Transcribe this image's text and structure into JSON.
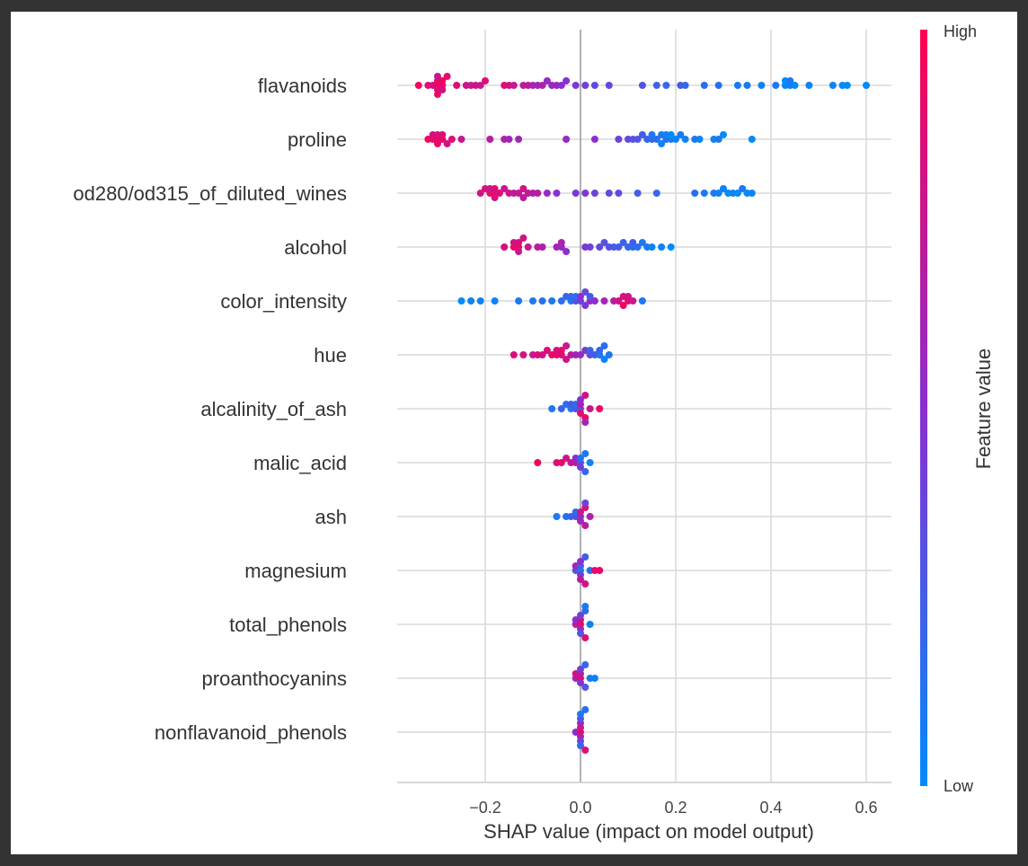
{
  "chart_data": {
    "type": "scatter",
    "subtype": "shap-beeswarm-summary",
    "title": "",
    "xlabel": "SHAP value (impact on model output)",
    "ylabel": "",
    "xlim": [
      -0.38,
      0.65
    ],
    "xticks": [
      -0.2,
      0.0,
      0.2,
      0.4,
      0.6
    ],
    "xtick_labels": [
      "−0.2",
      "0.0",
      "0.2",
      "0.4",
      "0.6"
    ],
    "grid": true,
    "colorbar": {
      "label": "Feature value",
      "high_label": "High",
      "low_label": "Low",
      "high_color": "#ff0052",
      "mid_color": "#8a2fd0",
      "low_color": "#008bfb"
    },
    "features": [
      {
        "name": "flavanoids",
        "points": [
          [
            -0.34,
            0.95
          ],
          [
            -0.32,
            0.85
          ],
          [
            -0.31,
            0.8
          ],
          [
            -0.3,
            0.95
          ],
          [
            -0.3,
            0.9
          ],
          [
            -0.3,
            0.85
          ],
          [
            -0.3,
            0.75
          ],
          [
            -0.3,
            0.9
          ],
          [
            -0.29,
            0.9
          ],
          [
            -0.29,
            0.95
          ],
          [
            -0.29,
            0.8
          ],
          [
            -0.28,
            0.9
          ],
          [
            -0.26,
            0.85
          ],
          [
            -0.24,
            0.8
          ],
          [
            -0.23,
            0.75
          ],
          [
            -0.22,
            0.8
          ],
          [
            -0.21,
            0.75
          ],
          [
            -0.2,
            0.85
          ],
          [
            -0.16,
            0.85
          ],
          [
            -0.15,
            0.8
          ],
          [
            -0.14,
            0.75
          ],
          [
            -0.12,
            0.7
          ],
          [
            -0.11,
            0.75
          ],
          [
            -0.1,
            0.6
          ],
          [
            -0.09,
            0.6
          ],
          [
            -0.08,
            0.65
          ],
          [
            -0.07,
            0.55
          ],
          [
            -0.06,
            0.55
          ],
          [
            -0.05,
            0.6
          ],
          [
            -0.04,
            0.5
          ],
          [
            -0.03,
            0.5
          ],
          [
            -0.01,
            0.45
          ],
          [
            0.01,
            0.4
          ],
          [
            0.03,
            0.35
          ],
          [
            0.06,
            0.35
          ],
          [
            0.13,
            0.3
          ],
          [
            0.16,
            0.25
          ],
          [
            0.18,
            0.2
          ],
          [
            0.21,
            0.25
          ],
          [
            0.22,
            0.2
          ],
          [
            0.26,
            0.15
          ],
          [
            0.29,
            0.15
          ],
          [
            0.33,
            0.1
          ],
          [
            0.35,
            0.1
          ],
          [
            0.38,
            0.05
          ],
          [
            0.41,
            0.1
          ],
          [
            0.43,
            0.05
          ],
          [
            0.43,
            0.0
          ],
          [
            0.44,
            0.05
          ],
          [
            0.44,
            0.1
          ],
          [
            0.45,
            0.0
          ],
          [
            0.48,
            0.05
          ],
          [
            0.53,
            0.05
          ],
          [
            0.55,
            0.0
          ],
          [
            0.56,
            0.0
          ],
          [
            0.6,
            0.0
          ]
        ]
      },
      {
        "name": "proline",
        "points": [
          [
            -0.32,
            0.95
          ],
          [
            -0.31,
            0.9
          ],
          [
            -0.31,
            0.8
          ],
          [
            -0.3,
            0.95
          ],
          [
            -0.3,
            0.85
          ],
          [
            -0.3,
            0.9
          ],
          [
            -0.29,
            0.9
          ],
          [
            -0.29,
            0.85
          ],
          [
            -0.28,
            0.8
          ],
          [
            -0.27,
            0.85
          ],
          [
            -0.25,
            0.75
          ],
          [
            -0.19,
            0.7
          ],
          [
            -0.16,
            0.65
          ],
          [
            -0.15,
            0.6
          ],
          [
            -0.13,
            0.6
          ],
          [
            -0.03,
            0.55
          ],
          [
            0.03,
            0.5
          ],
          [
            0.08,
            0.4
          ],
          [
            0.1,
            0.35
          ],
          [
            0.11,
            0.3
          ],
          [
            0.12,
            0.3
          ],
          [
            0.13,
            0.25
          ],
          [
            0.14,
            0.2
          ],
          [
            0.15,
            0.2
          ],
          [
            0.15,
            0.1
          ],
          [
            0.16,
            0.15
          ],
          [
            0.17,
            0.1
          ],
          [
            0.17,
            0.05
          ],
          [
            0.18,
            0.15
          ],
          [
            0.18,
            0.05
          ],
          [
            0.19,
            0.1
          ],
          [
            0.19,
            0.0
          ],
          [
            0.2,
            0.05
          ],
          [
            0.21,
            0.1
          ],
          [
            0.22,
            0.05
          ],
          [
            0.24,
            0.1
          ],
          [
            0.25,
            0.05
          ],
          [
            0.28,
            0.05
          ],
          [
            0.29,
            0.1
          ],
          [
            0.3,
            0.0
          ],
          [
            0.36,
            0.0
          ]
        ]
      },
      {
        "name": "od280/od315_of_diluted_wines",
        "points": [
          [
            -0.21,
            0.8
          ],
          [
            -0.2,
            0.85
          ],
          [
            -0.19,
            0.9
          ],
          [
            -0.19,
            0.75
          ],
          [
            -0.18,
            0.95
          ],
          [
            -0.18,
            0.85
          ],
          [
            -0.18,
            0.8
          ],
          [
            -0.17,
            0.85
          ],
          [
            -0.16,
            0.75
          ],
          [
            -0.15,
            0.8
          ],
          [
            -0.14,
            0.7
          ],
          [
            -0.13,
            0.75
          ],
          [
            -0.12,
            0.8
          ],
          [
            -0.12,
            0.7
          ],
          [
            -0.11,
            0.75
          ],
          [
            -0.1,
            0.65
          ],
          [
            -0.09,
            0.7
          ],
          [
            -0.07,
            0.55
          ],
          [
            -0.05,
            0.5
          ],
          [
            -0.01,
            0.45
          ],
          [
            0.01,
            0.45
          ],
          [
            0.03,
            0.4
          ],
          [
            0.06,
            0.35
          ],
          [
            0.08,
            0.35
          ],
          [
            0.12,
            0.25
          ],
          [
            0.16,
            0.2
          ],
          [
            0.24,
            0.15
          ],
          [
            0.26,
            0.1
          ],
          [
            0.28,
            0.1
          ],
          [
            0.29,
            0.05
          ],
          [
            0.3,
            0.05
          ],
          [
            0.31,
            0.0
          ],
          [
            0.32,
            0.05
          ],
          [
            0.33,
            0.0
          ],
          [
            0.34,
            0.1
          ],
          [
            0.35,
            0.0
          ],
          [
            0.36,
            0.05
          ]
        ]
      },
      {
        "name": "alcohol",
        "points": [
          [
            -0.16,
            0.85
          ],
          [
            -0.14,
            0.9
          ],
          [
            -0.14,
            0.8
          ],
          [
            -0.13,
            0.95
          ],
          [
            -0.13,
            0.85
          ],
          [
            -0.13,
            0.75
          ],
          [
            -0.12,
            0.8
          ],
          [
            -0.11,
            0.75
          ],
          [
            -0.09,
            0.7
          ],
          [
            -0.08,
            0.65
          ],
          [
            -0.05,
            0.6
          ],
          [
            -0.04,
            0.55
          ],
          [
            -0.04,
            0.65
          ],
          [
            -0.03,
            0.5
          ],
          [
            0.01,
            0.45
          ],
          [
            0.02,
            0.4
          ],
          [
            0.04,
            0.35
          ],
          [
            0.05,
            0.3
          ],
          [
            0.06,
            0.3
          ],
          [
            0.07,
            0.25
          ],
          [
            0.08,
            0.25
          ],
          [
            0.09,
            0.2
          ],
          [
            0.1,
            0.2
          ],
          [
            0.11,
            0.15
          ],
          [
            0.11,
            0.25
          ],
          [
            0.12,
            0.15
          ],
          [
            0.13,
            0.1
          ],
          [
            0.14,
            0.1
          ],
          [
            0.15,
            0.05
          ],
          [
            0.17,
            0.05
          ],
          [
            0.19,
            0.0
          ]
        ]
      },
      {
        "name": "color_intensity",
        "points": [
          [
            -0.25,
            0.0
          ],
          [
            -0.23,
            0.05
          ],
          [
            -0.21,
            0.05
          ],
          [
            -0.18,
            0.05
          ],
          [
            -0.13,
            0.1
          ],
          [
            -0.1,
            0.1
          ],
          [
            -0.08,
            0.15
          ],
          [
            -0.06,
            0.1
          ],
          [
            -0.04,
            0.15
          ],
          [
            -0.03,
            0.2
          ],
          [
            -0.02,
            0.1
          ],
          [
            -0.02,
            0.2
          ],
          [
            -0.01,
            0.3
          ],
          [
            -0.01,
            0.15
          ],
          [
            0.0,
            0.4
          ],
          [
            0.0,
            0.5
          ],
          [
            0.01,
            0.45
          ],
          [
            0.01,
            0.35
          ],
          [
            0.02,
            0.55
          ],
          [
            0.02,
            0.25
          ],
          [
            0.03,
            0.5
          ],
          [
            0.05,
            0.6
          ],
          [
            0.07,
            0.7
          ],
          [
            0.08,
            0.8
          ],
          [
            0.09,
            0.85
          ],
          [
            0.09,
            0.95
          ],
          [
            0.1,
            0.9
          ],
          [
            0.1,
            0.8
          ],
          [
            0.11,
            0.75
          ],
          [
            0.13,
            0.1
          ]
        ]
      },
      {
        "name": "hue",
        "points": [
          [
            -0.14,
            0.85
          ],
          [
            -0.12,
            0.8
          ],
          [
            -0.1,
            0.75
          ],
          [
            -0.09,
            0.85
          ],
          [
            -0.08,
            0.8
          ],
          [
            -0.07,
            0.85
          ],
          [
            -0.06,
            0.9
          ],
          [
            -0.05,
            0.95
          ],
          [
            -0.05,
            0.8
          ],
          [
            -0.04,
            0.85
          ],
          [
            -0.04,
            0.9
          ],
          [
            -0.03,
            0.8
          ],
          [
            -0.03,
            0.75
          ],
          [
            -0.02,
            0.7
          ],
          [
            -0.01,
            0.6
          ],
          [
            0.0,
            0.55
          ],
          [
            0.01,
            0.45
          ],
          [
            0.02,
            0.35
          ],
          [
            0.02,
            0.2
          ],
          [
            0.03,
            0.25
          ],
          [
            0.04,
            0.1
          ],
          [
            0.04,
            0.2
          ],
          [
            0.05,
            0.05
          ],
          [
            0.05,
            0.15
          ],
          [
            0.06,
            0.1
          ]
        ]
      },
      {
        "name": "alcalinity_of_ash",
        "points": [
          [
            -0.06,
            0.1
          ],
          [
            -0.04,
            0.2
          ],
          [
            -0.03,
            0.15
          ],
          [
            -0.02,
            0.1
          ],
          [
            -0.02,
            0.25
          ],
          [
            -0.01,
            0.3
          ],
          [
            -0.01,
            0.15
          ],
          [
            0.0,
            0.35
          ],
          [
            0.0,
            0.7
          ],
          [
            0.0,
            0.85
          ],
          [
            0.0,
            0.5
          ],
          [
            0.01,
            0.9
          ],
          [
            0.01,
            0.8
          ],
          [
            0.01,
            0.6
          ],
          [
            0.02,
            0.75
          ],
          [
            0.04,
            0.95
          ]
        ]
      },
      {
        "name": "malic_acid",
        "points": [
          [
            -0.09,
            0.95
          ],
          [
            -0.05,
            0.85
          ],
          [
            -0.04,
            0.9
          ],
          [
            -0.03,
            0.8
          ],
          [
            -0.02,
            0.75
          ],
          [
            -0.01,
            0.7
          ],
          [
            -0.01,
            0.5
          ],
          [
            0.0,
            0.3
          ],
          [
            0.0,
            0.15
          ],
          [
            0.0,
            0.4
          ],
          [
            0.01,
            0.1
          ],
          [
            0.01,
            0.2
          ],
          [
            0.02,
            0.05
          ]
        ]
      },
      {
        "name": "ash",
        "points": [
          [
            -0.05,
            0.1
          ],
          [
            -0.03,
            0.15
          ],
          [
            -0.02,
            0.2
          ],
          [
            -0.01,
            0.3
          ],
          [
            -0.01,
            0.15
          ],
          [
            0.0,
            0.5
          ],
          [
            0.0,
            0.75
          ],
          [
            0.0,
            0.6
          ],
          [
            0.01,
            0.85
          ],
          [
            0.01,
            0.7
          ],
          [
            0.01,
            0.4
          ],
          [
            0.02,
            0.65
          ]
        ]
      },
      {
        "name": "magnesium",
        "points": [
          [
            -0.01,
            0.3
          ],
          [
            -0.01,
            0.6
          ],
          [
            0.0,
            0.1
          ],
          [
            0.0,
            0.2
          ],
          [
            0.0,
            0.4
          ],
          [
            0.0,
            0.5
          ],
          [
            0.0,
            0.7
          ],
          [
            0.01,
            0.25
          ],
          [
            0.01,
            0.8
          ],
          [
            0.02,
            0.15
          ],
          [
            0.03,
            0.85
          ],
          [
            0.04,
            0.95
          ]
        ]
      },
      {
        "name": "total_phenols",
        "points": [
          [
            -0.01,
            0.7
          ],
          [
            -0.01,
            0.5
          ],
          [
            0.0,
            0.9
          ],
          [
            0.0,
            0.8
          ],
          [
            0.0,
            0.6
          ],
          [
            0.0,
            0.4
          ],
          [
            0.0,
            0.3
          ],
          [
            0.01,
            0.2
          ],
          [
            0.01,
            0.85
          ],
          [
            0.01,
            0.1
          ],
          [
            0.02,
            0.05
          ]
        ]
      },
      {
        "name": "proanthocyanins",
        "points": [
          [
            -0.01,
            0.6
          ],
          [
            -0.01,
            0.8
          ],
          [
            0.0,
            0.9
          ],
          [
            0.0,
            0.7
          ],
          [
            0.0,
            0.5
          ],
          [
            0.0,
            0.4
          ],
          [
            0.01,
            0.3
          ],
          [
            0.01,
            0.2
          ],
          [
            0.02,
            0.1
          ],
          [
            0.03,
            0.05
          ]
        ]
      },
      {
        "name": "nonflavanoid_phenols",
        "points": [
          [
            -0.01,
            0.5
          ],
          [
            0.0,
            0.9
          ],
          [
            0.0,
            0.8
          ],
          [
            0.0,
            0.7
          ],
          [
            0.0,
            0.6
          ],
          [
            0.0,
            0.4
          ],
          [
            0.0,
            0.3
          ],
          [
            0.0,
            0.2
          ],
          [
            0.0,
            0.1
          ],
          [
            0.01,
            0.85
          ],
          [
            0.01,
            0.15
          ]
        ]
      }
    ]
  }
}
